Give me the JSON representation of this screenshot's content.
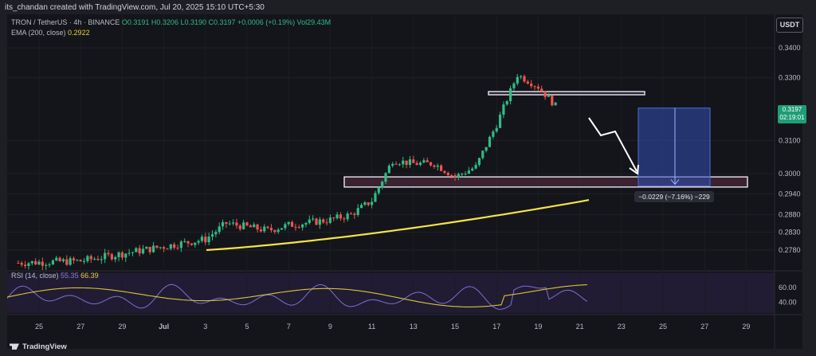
{
  "header": {
    "created_by": "its_chandan created with TradingView.com, Jul 20, 2025 15:10 UTC+5:30"
  },
  "legend": {
    "symbol": "TRON / TetherUS · 4h · BINANCE",
    "ohlc": "O0.3191 H0.3206 L0.3190 C0.3197 +0.0006 (+0.19%) Vol29.43M",
    "ema_label": "EMA (200, close)",
    "ema_value": "0.2922"
  },
  "currency_button": "USDT",
  "price_tag": {
    "price": "0.3197",
    "countdown": "02:19:01"
  },
  "measure_label": "−0.0229 (−7.16%) −229",
  "rsi_legend": {
    "label": "RSI (14, close)",
    "rsi_value": "55.35",
    "ma_value": "66.39"
  },
  "footer": {
    "brand": "TradingView"
  },
  "colors": {
    "up": "#2ebd85",
    "down": "#ef5350",
    "ema": "#f5e34a",
    "rsi": "#7e6fd1",
    "rsi_ma": "#d8c43a",
    "zone": "#5a2e46",
    "target": "#2f4fb5"
  },
  "chart_data": [
    {
      "type": "candlestick",
      "symbol": "TRON / TetherUS",
      "interval": "4h",
      "exchange": "BINANCE",
      "y_ticks": [
        "0.3400",
        "0.3300",
        "0.3100",
        "0.3000",
        "0.2940",
        "0.2880",
        "0.2830",
        "0.2780"
      ],
      "x_ticks": [
        "25",
        "27",
        "29",
        "Jul",
        "3",
        "5",
        "7",
        "9",
        "11",
        "13",
        "15",
        "17",
        "19",
        "21",
        "23",
        "25",
        "27",
        "29"
      ],
      "approx_close_path": [
        {
          "x": "Jun 24",
          "y": 0.2745
        },
        {
          "x": "Jun 27",
          "y": 0.275
        },
        {
          "x": "Jun 29",
          "y": 0.277
        },
        {
          "x": "Jul 1",
          "y": 0.279
        },
        {
          "x": "Jul 3",
          "y": 0.281
        },
        {
          "x": "Jul 4",
          "y": 0.2855
        },
        {
          "x": "Jul 6",
          "y": 0.2835
        },
        {
          "x": "Jul 7",
          "y": 0.285
        },
        {
          "x": "Jul 9",
          "y": 0.2865
        },
        {
          "x": "Jul 10",
          "y": 0.288
        },
        {
          "x": "Jul 11",
          "y": 0.292
        },
        {
          "x": "Jul 12",
          "y": 0.304
        },
        {
          "x": "Jul 13",
          "y": 0.303
        },
        {
          "x": "Jul 14",
          "y": 0.303
        },
        {
          "x": "Jul 15",
          "y": 0.299
        },
        {
          "x": "Jul 16",
          "y": 0.302
        },
        {
          "x": "Jul 17",
          "y": 0.315
        },
        {
          "x": "Jul 18",
          "y": 0.331
        },
        {
          "x": "Jul 19",
          "y": 0.327
        },
        {
          "x": "Jul 20",
          "y": 0.3197
        }
      ],
      "ema_200": {
        "label": "EMA (200, close)",
        "last": 0.2922
      },
      "zones": [
        {
          "kind": "resistance",
          "y_top": 0.3255,
          "y_bottom": 0.3247
        },
        {
          "kind": "support",
          "y_top": 0.299,
          "y_bottom": 0.296
        }
      ],
      "projection": {
        "from": 0.3197,
        "to": 0.2968,
        "change": "−0.0229 (−7.16%) −229"
      }
    },
    {
      "type": "line",
      "title": "RSI (14, close)",
      "y_ticks": [
        "60.00",
        "40.00"
      ],
      "series": [
        {
          "name": "RSI",
          "last": 55.35
        },
        {
          "name": "RSI MA",
          "last": 66.39
        }
      ]
    }
  ]
}
